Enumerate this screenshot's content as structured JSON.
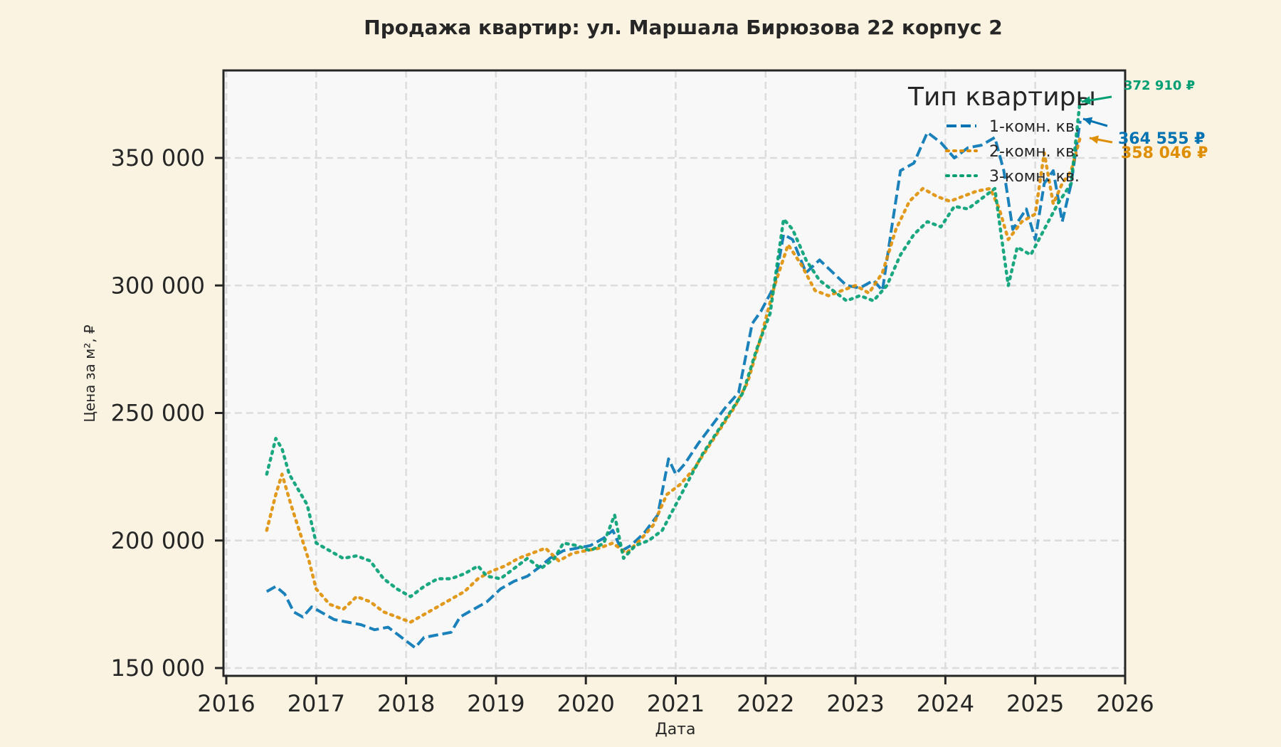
{
  "chart_data": {
    "type": "line",
    "title": "Продажа квартир: ул. Маршала Бирюзова 22 корпус 2",
    "xlabel": "Дата",
    "ylabel": "Цена за м², ₽",
    "xlim": [
      2016,
      2026
    ],
    "ylim": [
      147000,
      383000
    ],
    "x_ticks": [
      "2016",
      "2017",
      "2018",
      "2019",
      "2020",
      "2021",
      "2022",
      "2023",
      "2024",
      "2025",
      "2026"
    ],
    "y_ticks": [
      {
        "value": 150000,
        "label": "150 000"
      },
      {
        "value": 200000,
        "label": "200 000"
      },
      {
        "value": 250000,
        "label": "250 000"
      },
      {
        "value": 300000,
        "label": "300 000"
      },
      {
        "value": 350000,
        "label": "350 000"
      }
    ],
    "grid": true,
    "legend": {
      "title": "Тип квартиры",
      "position": "upper right"
    },
    "series": [
      {
        "name": "1-комн. кв.",
        "color": "#0173b2",
        "style": "dashed",
        "x": [
          2016.45,
          2016.55,
          2016.65,
          2016.75,
          2016.85,
          2016.95,
          2017.05,
          2017.2,
          2017.35,
          2017.5,
          2017.65,
          2017.8,
          2017.95,
          2018.1,
          2018.2,
          2018.35,
          2018.5,
          2018.6,
          2018.75,
          2018.9,
          2019.05,
          2019.2,
          2019.35,
          2019.5,
          2019.6,
          2019.75,
          2019.9,
          2020.05,
          2020.2,
          2020.3,
          2020.4,
          2020.5,
          2020.65,
          2020.8,
          2020.92,
          2021.0,
          2021.1,
          2021.25,
          2021.4,
          2021.55,
          2021.7,
          2021.85,
          2021.95,
          2022.1,
          2022.2,
          2022.3,
          2022.45,
          2022.6,
          2022.75,
          2022.9,
          2023.05,
          2023.2,
          2023.3,
          2023.4,
          2023.5,
          2023.65,
          2023.8,
          2023.95,
          2024.1,
          2024.25,
          2024.4,
          2024.55,
          2024.65,
          2024.75,
          2024.9,
          2025.0,
          2025.1,
          2025.2,
          2025.3,
          2025.4,
          2025.5
        ],
        "y": [
          180000,
          182000,
          179000,
          172000,
          170000,
          174000,
          172000,
          169000,
          168000,
          167000,
          165000,
          166000,
          162000,
          158000,
          162000,
          163000,
          164000,
          170000,
          173000,
          176000,
          181000,
          184000,
          186000,
          190000,
          193000,
          196000,
          197000,
          198000,
          201000,
          204000,
          196000,
          198000,
          203000,
          210000,
          232000,
          226000,
          230000,
          238000,
          245000,
          252000,
          258000,
          285000,
          290000,
          300000,
          320000,
          318000,
          305000,
          310000,
          305000,
          300000,
          299000,
          302000,
          298000,
          322000,
          345000,
          348000,
          360000,
          356000,
          350000,
          354000,
          355000,
          358000,
          345000,
          322000,
          330000,
          318000,
          340000,
          345000,
          325000,
          340000,
          364555
        ]
      },
      {
        "name": "2-комн. кв.",
        "color": "#de8f05",
        "style": "dotted",
        "x": [
          2016.45,
          2016.55,
          2016.62,
          2016.72,
          2016.82,
          2016.92,
          2017.0,
          2017.15,
          2017.3,
          2017.45,
          2017.6,
          2017.75,
          2017.9,
          2018.05,
          2018.2,
          2018.35,
          2018.5,
          2018.65,
          2018.8,
          2018.95,
          2019.1,
          2019.25,
          2019.4,
          2019.55,
          2019.7,
          2019.85,
          2020.0,
          2020.15,
          2020.3,
          2020.45,
          2020.6,
          2020.75,
          2020.9,
          2021.05,
          2021.2,
          2021.35,
          2021.5,
          2021.65,
          2021.8,
          2021.95,
          2022.1,
          2022.25,
          2022.4,
          2022.55,
          2022.7,
          2022.85,
          2023.0,
          2023.15,
          2023.3,
          2023.45,
          2023.6,
          2023.75,
          2023.9,
          2024.05,
          2024.2,
          2024.35,
          2024.5,
          2024.6,
          2024.7,
          2024.85,
          2025.0,
          2025.1,
          2025.2,
          2025.3,
          2025.4,
          2025.5
        ],
        "y": [
          204000,
          218000,
          226000,
          214000,
          203000,
          192000,
          181000,
          175000,
          173000,
          178000,
          176000,
          172000,
          170000,
          168000,
          171000,
          174000,
          177000,
          180000,
          185000,
          188000,
          190000,
          193000,
          195000,
          197000,
          192000,
          195000,
          196000,
          197000,
          199000,
          195000,
          200000,
          206000,
          218000,
          222000,
          228000,
          236000,
          244000,
          252000,
          262000,
          280000,
          300000,
          316000,
          308000,
          298000,
          296000,
          298000,
          300000,
          297000,
          305000,
          322000,
          333000,
          338000,
          335000,
          333000,
          335000,
          337000,
          338000,
          330000,
          318000,
          325000,
          328000,
          352000,
          332000,
          340000,
          345000,
          358046
        ]
      },
      {
        "name": "3-комн. кв.",
        "color": "#029e73",
        "style": "dotted",
        "x": [
          2016.45,
          2016.55,
          2016.62,
          2016.7,
          2016.8,
          2016.9,
          2017.0,
          2017.15,
          2017.3,
          2017.45,
          2017.6,
          2017.75,
          2017.9,
          2018.05,
          2018.2,
          2018.35,
          2018.5,
          2018.65,
          2018.8,
          2018.9,
          2019.05,
          2019.2,
          2019.35,
          2019.5,
          2019.65,
          2019.75,
          2019.9,
          2020.05,
          2020.2,
          2020.32,
          2020.42,
          2020.55,
          2020.7,
          2020.85,
          2021.0,
          2021.15,
          2021.3,
          2021.45,
          2021.6,
          2021.75,
          2021.9,
          2022.05,
          2022.2,
          2022.3,
          2022.45,
          2022.6,
          2022.75,
          2022.9,
          2023.05,
          2023.2,
          2023.35,
          2023.5,
          2023.65,
          2023.8,
          2023.95,
          2024.1,
          2024.25,
          2024.4,
          2024.55,
          2024.62,
          2024.7,
          2024.8,
          2024.95,
          2025.1,
          2025.25,
          2025.4,
          2025.5
        ],
        "y": [
          226000,
          240000,
          236000,
          226000,
          220000,
          214000,
          199000,
          196000,
          193000,
          194000,
          192000,
          185000,
          181000,
          178000,
          182000,
          185000,
          185000,
          187000,
          190000,
          186000,
          185000,
          189000,
          193000,
          189000,
          193000,
          199000,
          198000,
          196000,
          199000,
          210000,
          193000,
          198000,
          200000,
          204000,
          214000,
          224000,
          234000,
          242000,
          250000,
          258000,
          275000,
          289000,
          326000,
          322000,
          310000,
          302000,
          298000,
          294000,
          296000,
          294000,
          300000,
          312000,
          320000,
          325000,
          323000,
          331000,
          330000,
          334000,
          338000,
          320000,
          300000,
          315000,
          312000,
          322000,
          332000,
          340000,
          372910
        ]
      }
    ],
    "annotations": [
      {
        "text": "372 910 ₽",
        "series": "3-комн. кв.",
        "color": "#029e73"
      },
      {
        "text": "364 555 ₽",
        "series": "1-комн. кв.",
        "color": "#0173b2"
      },
      {
        "text": "358 046 ₽",
        "series": "2-комн. кв.",
        "color": "#de8f05"
      }
    ]
  }
}
